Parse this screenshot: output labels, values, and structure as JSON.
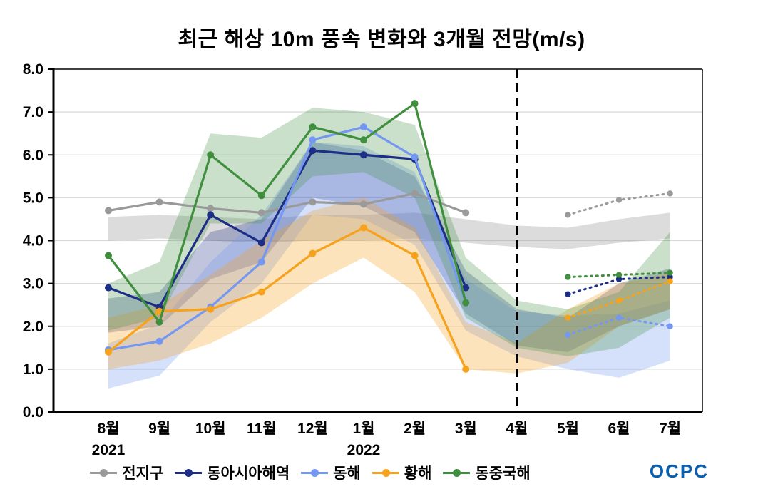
{
  "title": "최근 해상 10m 풍속 변화와 3개월 전망(m/s)",
  "logo": {
    "text": "OCPC"
  },
  "chart_data": {
    "type": "line",
    "x": [
      "8월",
      "9월",
      "10월",
      "11월",
      "12월",
      "1월",
      "2월",
      "3월",
      "4월",
      "5월",
      "6월",
      "7월"
    ],
    "x_year_labels": [
      {
        "index": 0,
        "label": "2021"
      },
      {
        "index": 5,
        "label": "2022"
      }
    ],
    "ylim": [
      0,
      8
    ],
    "ytick_step": 1.0,
    "ytick_labels": [
      "0.0",
      "1.0",
      "2.0",
      "3.0",
      "4.0",
      "5.0",
      "6.0",
      "7.0",
      "8.0"
    ],
    "grid": true,
    "legend_position": "bottom",
    "forecast_divider_index": 8,
    "forecast_divider_label": "4월",
    "style_note": "solid line = observed Aug2021-Mar2022, dotted line = 3-month forecast May-Jul, shaded = uncertainty band",
    "series": [
      {
        "name": "전지구",
        "color": "#9a9a9a",
        "band_opacity": 0.35,
        "observed": [
          4.7,
          4.9,
          4.75,
          4.65,
          4.9,
          4.85,
          5.1,
          4.65
        ],
        "forecast": [
          4.6,
          4.95,
          5.1
        ],
        "band_low": [
          4.0,
          4.05,
          4.0,
          3.95,
          4.0,
          4.0,
          4.05,
          3.95,
          3.85,
          3.8,
          3.95,
          4.05
        ],
        "band_high": [
          4.55,
          4.6,
          4.55,
          4.5,
          4.6,
          4.6,
          4.65,
          4.5,
          4.35,
          4.3,
          4.5,
          4.65
        ]
      },
      {
        "name": "동아시아해역",
        "color": "#1c2e85",
        "band_opacity": 0.28,
        "observed": [
          2.9,
          2.45,
          4.6,
          3.95,
          6.1,
          6.0,
          5.9,
          2.9
        ],
        "forecast": [
          2.75,
          3.1,
          3.15
        ],
        "band_low": [
          1.85,
          2.0,
          3.1,
          3.5,
          5.0,
          4.8,
          4.2,
          2.3,
          1.55,
          1.4,
          2.0,
          2.4
        ],
        "band_high": [
          2.65,
          2.8,
          4.2,
          4.5,
          6.3,
          6.1,
          5.5,
          3.3,
          2.4,
          2.2,
          3.0,
          3.35
        ]
      },
      {
        "name": "동해",
        "color": "#7497f2",
        "band_opacity": 0.3,
        "observed": [
          1.45,
          1.65,
          2.45,
          3.5,
          6.35,
          6.65,
          5.95,
          2.55
        ],
        "forecast": [
          1.8,
          2.2,
          2.0
        ],
        "band_low": [
          0.55,
          0.85,
          2.1,
          3.0,
          4.6,
          4.5,
          3.9,
          1.9,
          1.3,
          1.0,
          0.8,
          1.2
        ],
        "band_high": [
          1.6,
          2.05,
          3.5,
          4.6,
          6.3,
          6.2,
          5.6,
          3.1,
          2.35,
          2.25,
          2.3,
          2.6
        ]
      },
      {
        "name": "황해",
        "color": "#f6a21d",
        "band_opacity": 0.3,
        "observed": [
          1.4,
          2.35,
          2.4,
          2.8,
          3.7,
          4.3,
          3.65,
          1.0
        ],
        "forecast": [
          2.2,
          2.6,
          3.05
        ],
        "band_low": [
          1.0,
          1.2,
          1.6,
          2.2,
          3.0,
          3.6,
          2.8,
          1.0,
          0.9,
          1.15,
          2.0,
          2.4
        ],
        "band_high": [
          2.2,
          2.5,
          3.2,
          4.0,
          4.7,
          5.0,
          4.3,
          2.1,
          1.6,
          2.4,
          3.0,
          3.25
        ]
      },
      {
        "name": "동중국해",
        "color": "#3f8f3f",
        "band_opacity": 0.28,
        "observed": [
          3.65,
          2.1,
          6.0,
          5.05,
          6.65,
          6.35,
          7.2,
          2.55
        ],
        "forecast": [
          3.15,
          3.2,
          3.25
        ],
        "band_low": [
          1.9,
          2.2,
          4.4,
          4.4,
          5.5,
          5.6,
          5.0,
          2.2,
          1.5,
          1.3,
          1.5,
          2.2
        ],
        "band_high": [
          3.0,
          3.5,
          6.5,
          6.4,
          7.1,
          7.0,
          6.7,
          3.6,
          2.6,
          2.4,
          2.8,
          4.2
        ]
      }
    ]
  }
}
